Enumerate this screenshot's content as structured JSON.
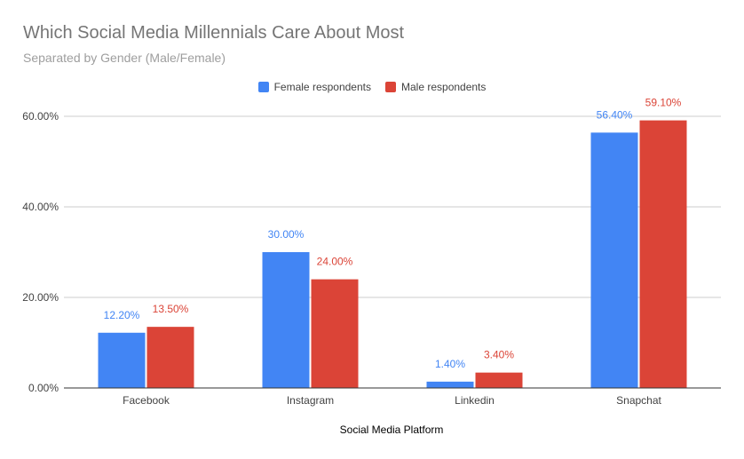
{
  "title": "Which Social Media Millennials Care About Most",
  "subtitle": "Separated by Gender (Male/Female)",
  "chart_data": {
    "type": "bar",
    "title": "Which Social Media Millennials Care About Most",
    "subtitle": "Separated by Gender (Male/Female)",
    "xlabel": "Social Media Platform",
    "ylabel": "",
    "categories": [
      "Facebook",
      "Instagram",
      "Linkedin",
      "Snapchat"
    ],
    "series": [
      {
        "name": "Female respondents",
        "color": "#4285f4",
        "values": [
          12.2,
          30.0,
          1.4,
          56.4
        ],
        "labels": [
          "12.20%",
          "30.00%",
          "1.40%",
          "56.40%"
        ]
      },
      {
        "name": "Male respondents",
        "color": "#db4437",
        "values": [
          13.5,
          24.0,
          3.4,
          59.1
        ],
        "labels": [
          "13.50%",
          "24.00%",
          "3.40%",
          "59.10%"
        ]
      }
    ],
    "ylim": [
      0,
      60
    ],
    "yticks": [
      0,
      20,
      40,
      60
    ],
    "ytick_labels": [
      "0.00%",
      "20.00%",
      "40.00%",
      "60.00%"
    ],
    "grid": true,
    "legend_position": "top"
  }
}
